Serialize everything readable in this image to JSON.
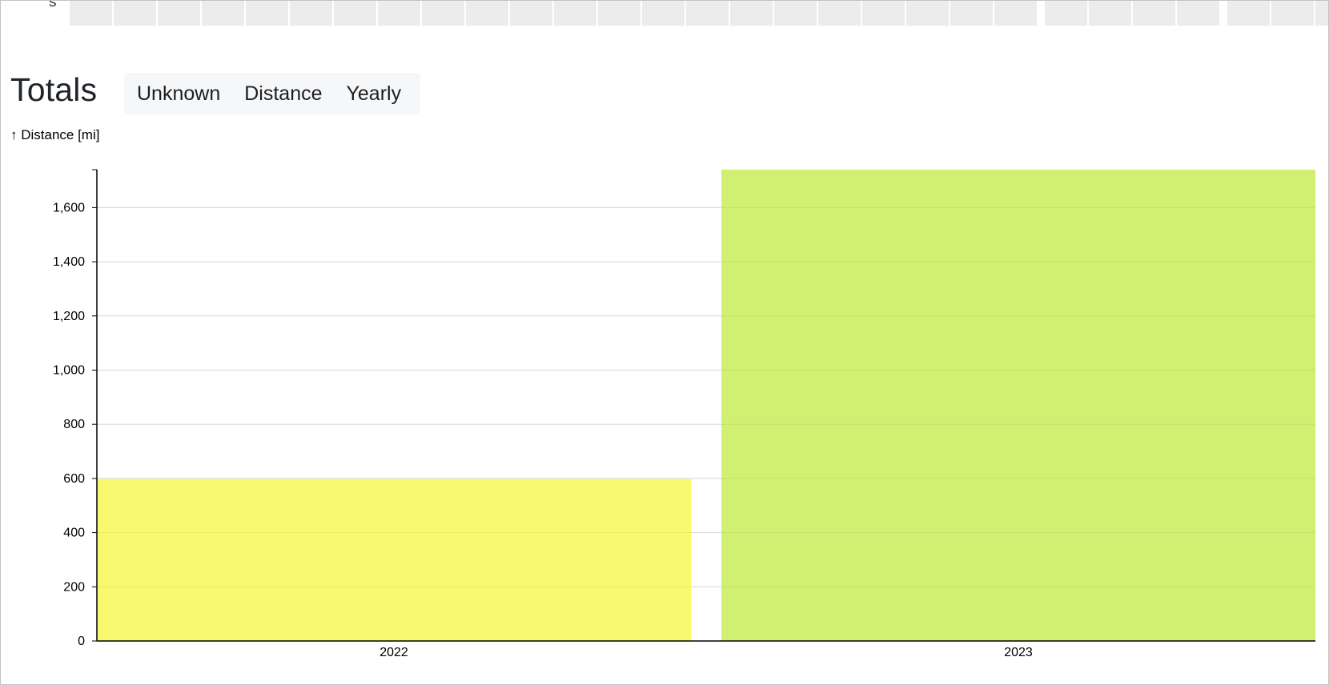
{
  "calendar_strip": {
    "label": "S",
    "cell_count": 29
  },
  "header": {
    "title": "Totals",
    "filters": [
      "Unknown",
      "Distance",
      "Yearly"
    ]
  },
  "chart_data": {
    "type": "bar",
    "title": "Totals",
    "ylabel": "↑ Distance [mi]",
    "xlabel": "",
    "categories": [
      "2022",
      "2023"
    ],
    "values": [
      598,
      1740
    ],
    "colors": [
      "#f8f96f",
      "#d1ef71"
    ],
    "ylim": [
      0,
      1740
    ],
    "yticks": [
      0,
      200,
      400,
      600,
      800,
      1000,
      1200,
      1400,
      1600
    ],
    "ytick_labels": [
      "0",
      "200",
      "400",
      "600",
      "800",
      "1,000",
      "1,200",
      "1,400",
      "1,600"
    ],
    "grid": true
  }
}
